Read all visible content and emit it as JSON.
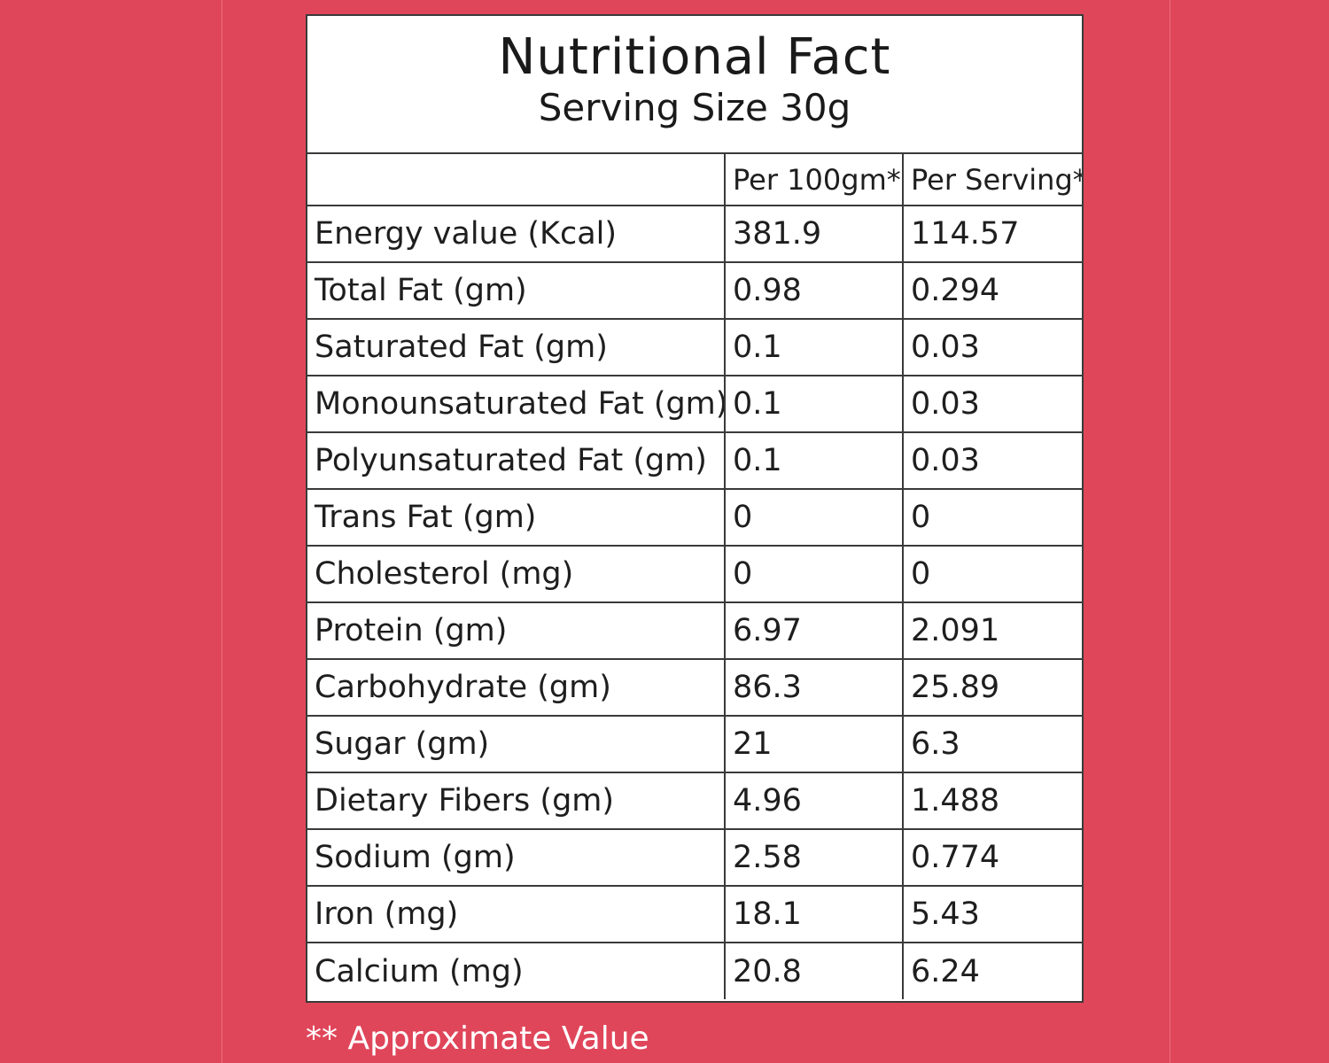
{
  "header": {
    "title": "Nutritional Fact",
    "subtitle": "Serving Size 30g"
  },
  "table": {
    "columns": [
      "",
      "Per 100gm*",
      "Per Serving*"
    ],
    "rows": [
      {
        "nutrient": "Energy value  (Kcal)",
        "per_100g": "381.9",
        "per_serving": "114.57"
      },
      {
        "nutrient": "Total Fat (gm)",
        "per_100g": "0.98",
        "per_serving": "0.294"
      },
      {
        "nutrient": "Saturated Fat (gm)",
        "per_100g": "0.1",
        "per_serving": "0.03"
      },
      {
        "nutrient": "Monounsaturated Fat (gm)",
        "per_100g": "0.1",
        "per_serving": "0.03"
      },
      {
        "nutrient": "Polyunsaturated Fat (gm)",
        "per_100g": "0.1",
        "per_serving": "0.03"
      },
      {
        "nutrient": "Trans Fat (gm)",
        "per_100g": "0",
        "per_serving": "0"
      },
      {
        "nutrient": "Cholesterol (mg)",
        "per_100g": "0",
        "per_serving": "0"
      },
      {
        "nutrient": "Protein (gm)",
        "per_100g": "6.97",
        "per_serving": "2.091"
      },
      {
        "nutrient": "Carbohydrate (gm)",
        "per_100g": "86.3",
        "per_serving": "25.89"
      },
      {
        "nutrient": "Sugar (gm)",
        "per_100g": "21",
        "per_serving": "6.3"
      },
      {
        "nutrient": "Dietary Fibers (gm)",
        "per_100g": "4.96",
        "per_serving": "1.488"
      },
      {
        "nutrient": "Sodium (gm)",
        "per_100g": "2.58",
        "per_serving": "0.774"
      },
      {
        "nutrient": "Iron (mg)",
        "per_100g": "18.1",
        "per_serving": "5.43"
      },
      {
        "nutrient": "Calcium (mg)",
        "per_100g": "20.8",
        "per_serving": "6.24"
      }
    ]
  },
  "footnote": "** Approximate Value",
  "colors": {
    "background": "#e0465a",
    "card": "#ffffff",
    "border": "#3a3a3a",
    "footnote_text": "#ffffff"
  }
}
